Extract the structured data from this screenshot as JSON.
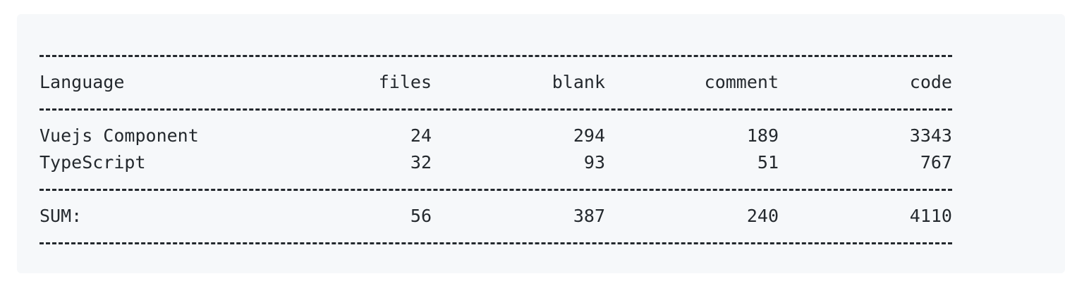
{
  "table": {
    "header": {
      "language": "Language",
      "files": "files",
      "blank": "blank",
      "comment": "comment",
      "code": "code"
    },
    "rows": [
      {
        "language": "Vuejs Component",
        "files": "24",
        "blank": "294",
        "comment": "189",
        "code": "3343"
      },
      {
        "language": "TypeScript",
        "files": "32",
        "blank": "93",
        "comment": "51",
        "code": "767"
      }
    ],
    "sum": {
      "language": "SUM:",
      "files": "56",
      "blank": "387",
      "comment": "240",
      "code": "4110"
    }
  }
}
